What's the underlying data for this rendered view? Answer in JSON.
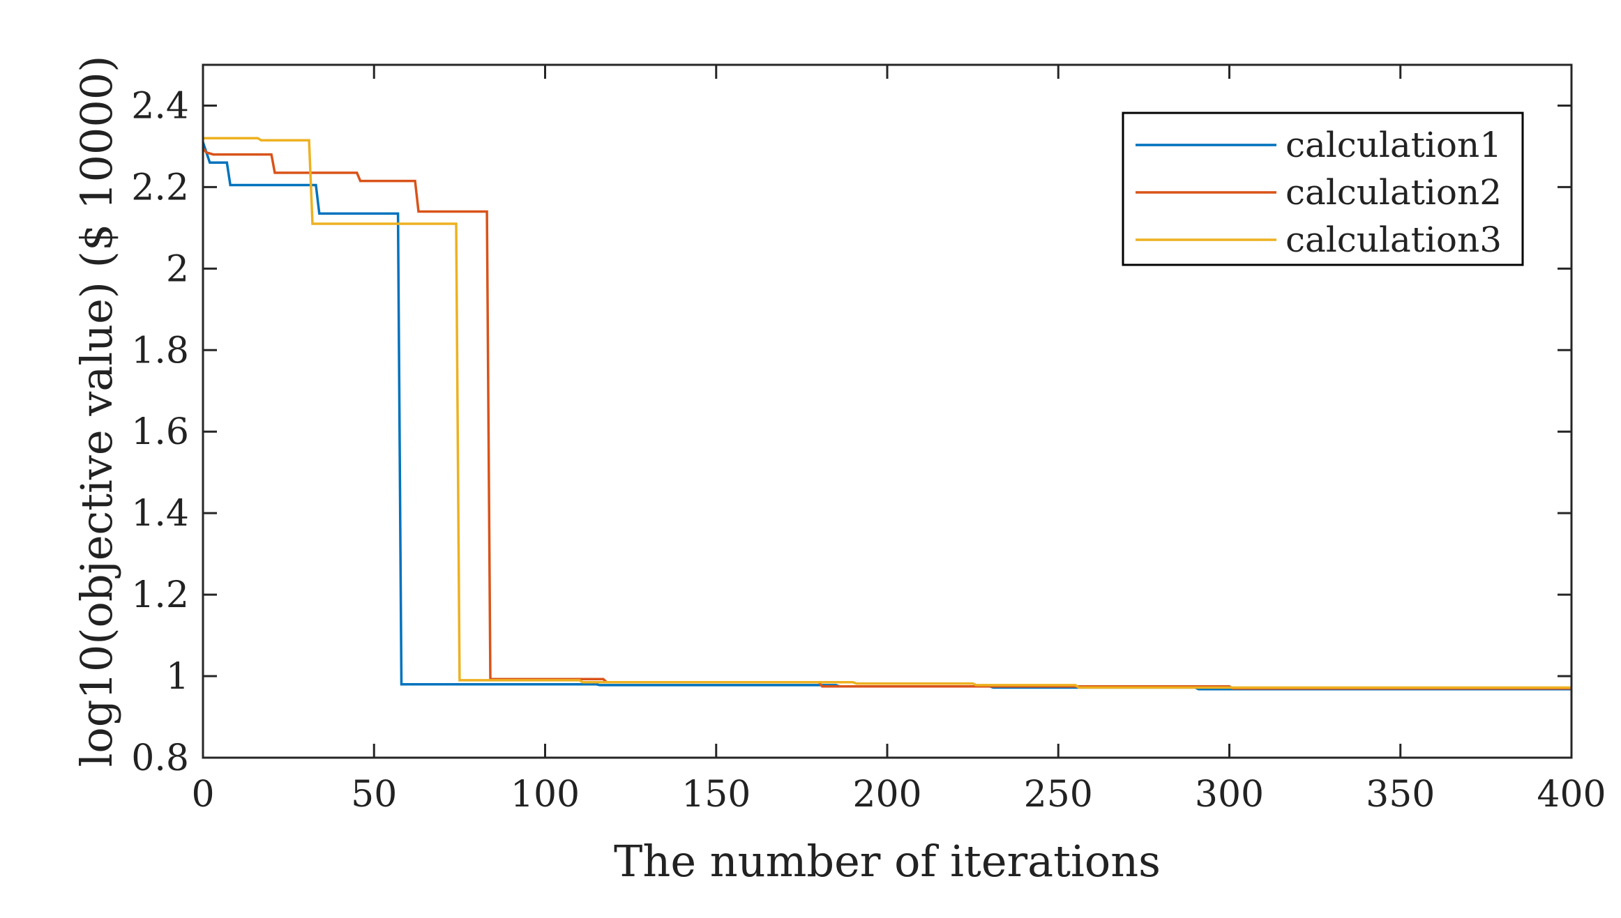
{
  "chart_data": {
    "type": "line",
    "title": "",
    "xlabel": "The number of iterations",
    "ylabel": "log10(objective value)  ($ 10000)",
    "xlim": [
      0,
      400
    ],
    "ylim": [
      0.8,
      2.5
    ],
    "xticks": [
      0,
      50,
      100,
      150,
      200,
      250,
      300,
      350,
      400
    ],
    "xtick_labels": [
      "0",
      "50",
      "100",
      "150",
      "200",
      "250",
      "300",
      "350",
      "400"
    ],
    "yticks": [
      0.8,
      1.0,
      1.2,
      1.4,
      1.6,
      1.8,
      2.0,
      2.2,
      2.4
    ],
    "ytick_labels": [
      "0.8",
      "1",
      "1.2",
      "1.4",
      "1.6",
      "1.8",
      "2",
      "2.2",
      "2.4"
    ],
    "grid": false,
    "legend_position": "top-right",
    "series": [
      {
        "name": "calculation1",
        "color": "#0072BD",
        "points": [
          [
            0,
            2.31
          ],
          [
            2,
            2.26
          ],
          [
            7,
            2.26
          ],
          [
            8,
            2.205
          ],
          [
            33,
            2.205
          ],
          [
            34,
            2.135
          ],
          [
            57,
            2.135
          ],
          [
            58,
            0.98
          ],
          [
            115,
            0.98
          ],
          [
            116,
            0.978
          ],
          [
            185,
            0.978
          ],
          [
            186,
            0.975
          ],
          [
            230,
            0.975
          ],
          [
            231,
            0.972
          ],
          [
            290,
            0.972
          ],
          [
            291,
            0.968
          ],
          [
            400,
            0.968
          ]
        ]
      },
      {
        "name": "calculation2",
        "color": "#D95319",
        "points": [
          [
            0,
            2.295
          ],
          [
            1,
            2.285
          ],
          [
            3,
            2.28
          ],
          [
            20,
            2.28
          ],
          [
            21,
            2.235
          ],
          [
            45,
            2.235
          ],
          [
            46,
            2.215
          ],
          [
            62,
            2.215
          ],
          [
            63,
            2.14
          ],
          [
            83,
            2.14
          ],
          [
            84,
            0.993
          ],
          [
            117,
            0.993
          ],
          [
            118,
            0.985
          ],
          [
            180,
            0.985
          ],
          [
            181,
            0.975
          ],
          [
            300,
            0.975
          ],
          [
            301,
            0.97
          ],
          [
            400,
            0.97
          ]
        ]
      },
      {
        "name": "calculation3",
        "color": "#EDB120",
        "points": [
          [
            0,
            2.32
          ],
          [
            16,
            2.32
          ],
          [
            17,
            2.315
          ],
          [
            31,
            2.315
          ],
          [
            32,
            2.11
          ],
          [
            74,
            2.11
          ],
          [
            75,
            0.99
          ],
          [
            110,
            0.99
          ],
          [
            111,
            0.985
          ],
          [
            190,
            0.985
          ],
          [
            191,
            0.982
          ],
          [
            225,
            0.982
          ],
          [
            226,
            0.978
          ],
          [
            255,
            0.978
          ],
          [
            256,
            0.972
          ],
          [
            400,
            0.972
          ]
        ]
      }
    ]
  }
}
